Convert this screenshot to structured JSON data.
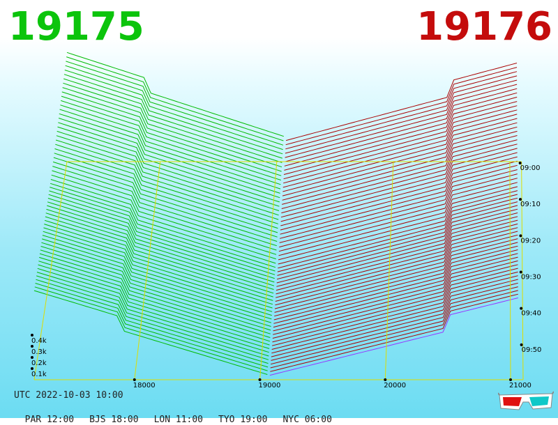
{
  "chart_data": {
    "type": "3d-depth-waterfall",
    "left_price": "19175",
    "right_price": "19176",
    "x_ticks": [
      "18000",
      "19000",
      "20000",
      "21000"
    ],
    "x_tick_values": [
      18000,
      19000,
      20000,
      21000
    ],
    "x_range": [
      17200,
      21100
    ],
    "y_ticks": [
      "0.1k",
      "0.2k",
      "0.3k",
      "0.4k"
    ],
    "y_tick_values": [
      100,
      200,
      300,
      400
    ],
    "time_ticks": [
      "09:00",
      "09:10",
      "09:20",
      "09:30",
      "09:40",
      "09:50"
    ],
    "time_tick_minutes": [
      0,
      10,
      20,
      30,
      40,
      50
    ],
    "time_range_minutes": [
      0,
      60
    ],
    "slice_count": 60,
    "bid_color": "#00bb00",
    "ask_color": "#aa0000",
    "latest_ask_color": "#9933ff",
    "grid_color": "#dddd00"
  },
  "footer": {
    "utc": "UTC 2022-10-03 10:00",
    "zones": [
      "PAR 12:00",
      "BJS 18:00",
      "LON 11:00",
      "TYO 19:00",
      "NYC 06:00"
    ]
  },
  "icons": {
    "glasses": "3d-glasses-icon"
  }
}
